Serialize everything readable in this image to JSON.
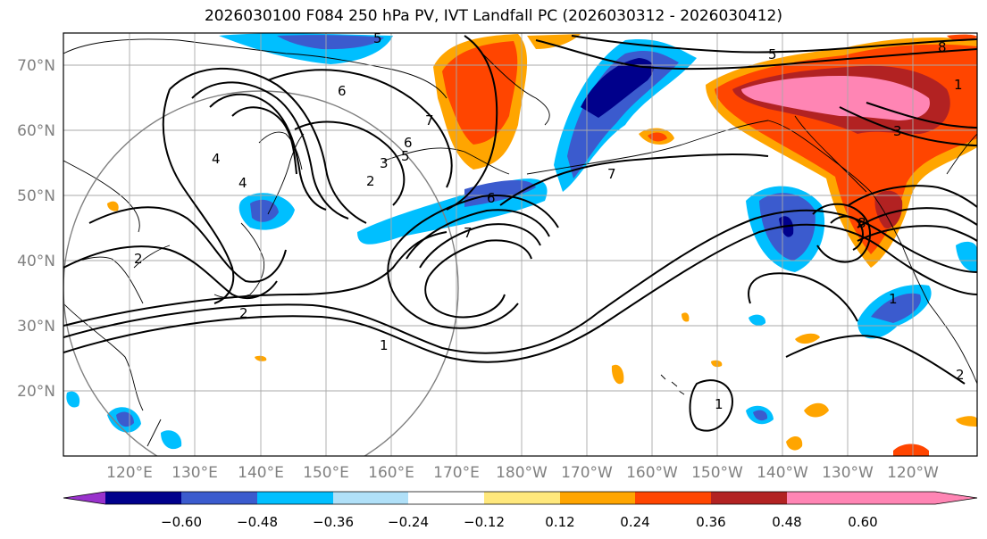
{
  "title": "2026030100 F084 250 hPa PV, IVT Landfall PC (2026030312 - 2026030412)",
  "map": {
    "lat_labels": [
      "70°N",
      "60°N",
      "50°N",
      "40°N",
      "30°N",
      "20°N"
    ],
    "lon_labels": [
      "120°E",
      "130°E",
      "140°E",
      "150°E",
      "160°E",
      "170°E",
      "180°W",
      "170°W",
      "160°W",
      "150°W",
      "140°W",
      "130°W",
      "120°W"
    ],
    "contour_labels": [
      "5",
      "6",
      "7",
      "6",
      "5",
      "4",
      "3",
      "2",
      "4",
      "2",
      "2",
      "1",
      "7",
      "6",
      "7",
      "5",
      "3",
      "8",
      "8",
      "1",
      "1",
      "1",
      "2"
    ],
    "colors": {
      "ocean": "#ffffff",
      "grid": "#a9a9a9",
      "circle": "#808080",
      "contour": "#000000",
      "coast": "#000000"
    }
  },
  "colorbar": {
    "levels": [
      "−0.60",
      "−0.48",
      "−0.36",
      "−0.24",
      "−0.12",
      "0.12",
      "0.24",
      "0.36",
      "0.48",
      "0.60"
    ],
    "colors": [
      "#9932cc",
      "#00008b",
      "#3b5bce",
      "#00bfff",
      "#b0e0f8",
      "#ffffff",
      "#ffe87c",
      "#ffa500",
      "#ff4500",
      "#b22222",
      "#ff85b4"
    ]
  }
}
